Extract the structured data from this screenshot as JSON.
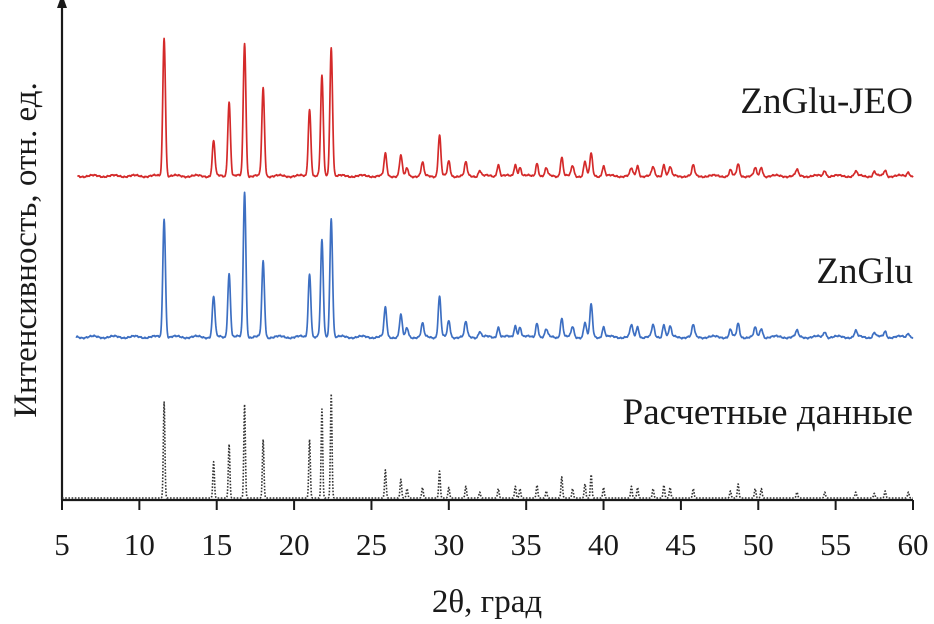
{
  "chart_data": {
    "type": "line",
    "title": "",
    "xlabel": "2θ, град",
    "ylabel": "Интенсивность, отн. ед.",
    "xlim": [
      5,
      60
    ],
    "xticks": [
      5,
      10,
      15,
      20,
      25,
      30,
      35,
      40,
      45,
      50,
      55,
      60
    ],
    "tick_labels": [
      "5",
      "10",
      "15",
      "20",
      "25",
      "30",
      "35",
      "40",
      "45",
      "50",
      "55",
      "60"
    ],
    "peaks_2theta": [
      11.6,
      14.8,
      15.8,
      16.8,
      18.0,
      21.0,
      21.8,
      22.4,
      25.9,
      26.9,
      27.3,
      28.3,
      29.4,
      30.0,
      31.1,
      32.0,
      33.2,
      34.3,
      34.6,
      35.7,
      36.3,
      37.3,
      38.0,
      38.8,
      39.2,
      40.0,
      41.8,
      42.2,
      43.2,
      43.9,
      44.3,
      45.8,
      48.2,
      48.7,
      49.8,
      50.2,
      52.5,
      54.3,
      56.3,
      57.5,
      58.2,
      59.7
    ],
    "series": [
      {
        "name": "ZnGlu-JEO",
        "color": "#d42a2a",
        "style": "solid",
        "intensities": [
          0.95,
          0.24,
          0.51,
          0.91,
          0.6,
          0.46,
          0.68,
          0.88,
          0.15,
          0.14,
          0.05,
          0.09,
          0.28,
          0.1,
          0.09,
          0.04,
          0.08,
          0.08,
          0.06,
          0.09,
          0.05,
          0.13,
          0.07,
          0.1,
          0.15,
          0.07,
          0.05,
          0.07,
          0.06,
          0.08,
          0.06,
          0.07,
          0.04,
          0.08,
          0.05,
          0.06,
          0.04,
          0.04,
          0.03,
          0.03,
          0.04,
          0.03
        ]
      },
      {
        "name": "ZnGlu",
        "color": "#3d6fc2",
        "style": "solid",
        "intensities": [
          0.82,
          0.28,
          0.44,
          1.0,
          0.52,
          0.44,
          0.66,
          0.82,
          0.2,
          0.15,
          0.06,
          0.09,
          0.28,
          0.11,
          0.1,
          0.04,
          0.07,
          0.08,
          0.07,
          0.1,
          0.05,
          0.13,
          0.07,
          0.1,
          0.22,
          0.07,
          0.08,
          0.07,
          0.08,
          0.09,
          0.07,
          0.08,
          0.05,
          0.09,
          0.06,
          0.06,
          0.04,
          0.04,
          0.04,
          0.03,
          0.04,
          0.03
        ]
      },
      {
        "name": "Расчетные данные",
        "color": "#333333",
        "style": "dotted",
        "intensities": [
          0.82,
          0.31,
          0.46,
          0.8,
          0.5,
          0.5,
          0.76,
          0.89,
          0.24,
          0.16,
          0.08,
          0.09,
          0.23,
          0.09,
          0.1,
          0.05,
          0.08,
          0.1,
          0.08,
          0.11,
          0.06,
          0.18,
          0.08,
          0.12,
          0.2,
          0.09,
          0.1,
          0.09,
          0.08,
          0.11,
          0.09,
          0.08,
          0.06,
          0.12,
          0.08,
          0.08,
          0.05,
          0.05,
          0.05,
          0.04,
          0.06,
          0.05
        ]
      }
    ]
  }
}
